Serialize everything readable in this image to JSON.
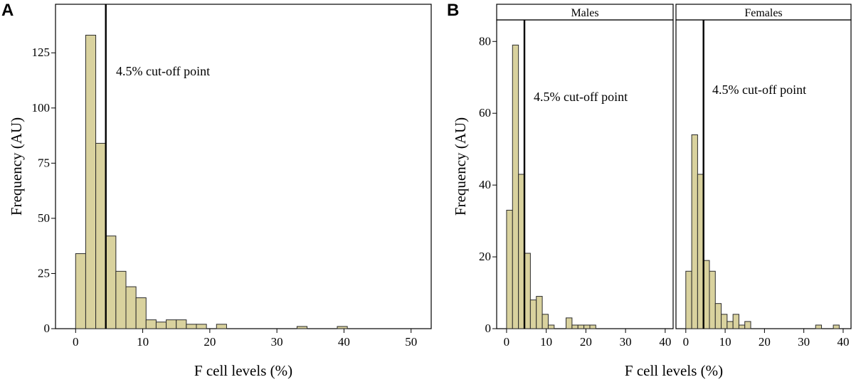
{
  "chart_data": [
    {
      "panel": "A",
      "type": "bar",
      "xlabel": "F cell levels (%)",
      "ylabel": "Frequency (AU)",
      "xlim": [
        -3,
        53
      ],
      "ylim": [
        0,
        147
      ],
      "xticks": [
        0,
        10,
        20,
        30,
        40,
        50
      ],
      "yticks": [
        0,
        25,
        50,
        75,
        100,
        125
      ],
      "bin_width": 1.5,
      "bins": [
        {
          "x0": 0.0,
          "value": 34
        },
        {
          "x0": 1.5,
          "value": 133
        },
        {
          "x0": 3.0,
          "value": 84
        },
        {
          "x0": 4.5,
          "value": 42
        },
        {
          "x0": 6.0,
          "value": 26
        },
        {
          "x0": 7.5,
          "value": 19
        },
        {
          "x0": 9.0,
          "value": 14
        },
        {
          "x0": 10.5,
          "value": 4
        },
        {
          "x0": 12.0,
          "value": 3
        },
        {
          "x0": 13.5,
          "value": 4
        },
        {
          "x0": 15.0,
          "value": 4
        },
        {
          "x0": 16.5,
          "value": 2
        },
        {
          "x0": 18.0,
          "value": 2
        },
        {
          "x0": 21.0,
          "value": 2
        },
        {
          "x0": 33.0,
          "value": 1
        },
        {
          "x0": 39.0,
          "value": 1
        }
      ],
      "cutoff": {
        "x": 4.5,
        "label": "4.5% cut-off point"
      }
    },
    {
      "panel": "B",
      "type": "bar",
      "xlabel": "F cell levels (%)",
      "ylabel": "Frequency (AU)",
      "ylim": [
        0,
        86
      ],
      "yticks": [
        0,
        20,
        40,
        60,
        80
      ],
      "facets": [
        {
          "title": "Males",
          "xlim": [
            -2.5,
            42
          ],
          "xticks": [
            0,
            10,
            20,
            30,
            40
          ],
          "bin_width": 1.5,
          "bins": [
            {
              "x0": 0.0,
              "value": 33
            },
            {
              "x0": 1.5,
              "value": 79
            },
            {
              "x0": 3.0,
              "value": 43
            },
            {
              "x0": 4.5,
              "value": 21
            },
            {
              "x0": 6.0,
              "value": 8
            },
            {
              "x0": 7.5,
              "value": 9
            },
            {
              "x0": 9.0,
              "value": 4
            },
            {
              "x0": 10.5,
              "value": 1
            },
            {
              "x0": 15.0,
              "value": 3
            },
            {
              "x0": 16.5,
              "value": 1
            },
            {
              "x0": 18.0,
              "value": 1
            },
            {
              "x0": 19.5,
              "value": 1
            },
            {
              "x0": 21.0,
              "value": 1
            }
          ],
          "cutoff": {
            "x": 4.5,
            "label": "4.5% cut-off point"
          }
        },
        {
          "title": "Females",
          "xlim": [
            -2.5,
            42
          ],
          "xticks": [
            0,
            10,
            20,
            30,
            40
          ],
          "bin_width": 1.5,
          "bins": [
            {
              "x0": 0.0,
              "value": 16
            },
            {
              "x0": 1.5,
              "value": 54
            },
            {
              "x0": 3.0,
              "value": 43
            },
            {
              "x0": 4.5,
              "value": 19
            },
            {
              "x0": 6.0,
              "value": 16
            },
            {
              "x0": 7.5,
              "value": 7
            },
            {
              "x0": 9.0,
              "value": 4
            },
            {
              "x0": 10.5,
              "value": 2
            },
            {
              "x0": 12.0,
              "value": 4
            },
            {
              "x0": 13.5,
              "value": 1
            },
            {
              "x0": 15.0,
              "value": 2
            },
            {
              "x0": 33.0,
              "value": 1
            },
            {
              "x0": 37.5,
              "value": 1
            }
          ],
          "cutoff": {
            "x": 4.5,
            "label": "4.5% cut-off point"
          }
        }
      ]
    }
  ]
}
